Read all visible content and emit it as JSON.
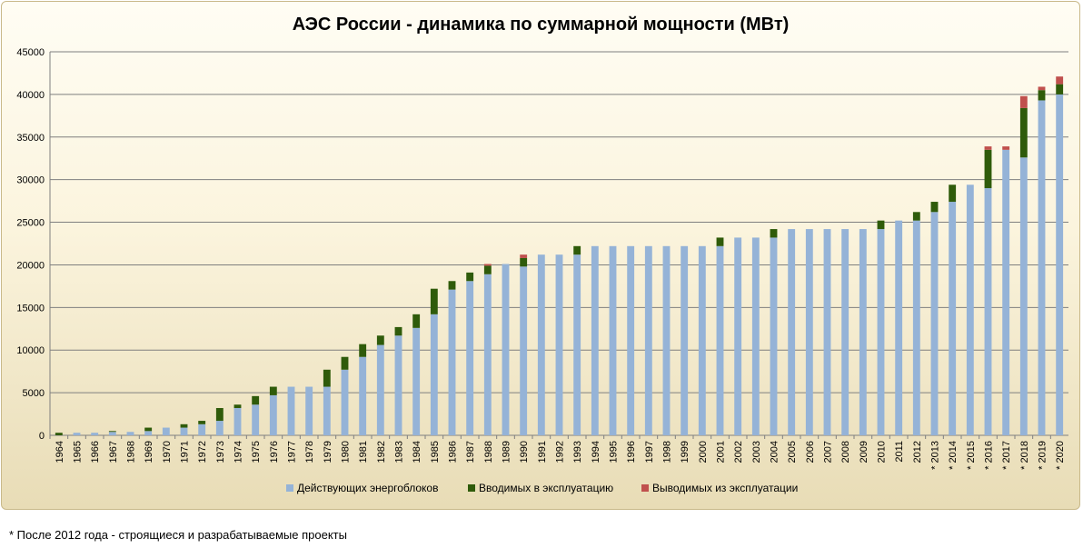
{
  "chart_data": {
    "type": "bar",
    "stacked": true,
    "title": "АЭС России - динамика по суммарной мощности (МВт)",
    "xlabel": "",
    "ylabel": "",
    "ylim": [
      0,
      45000
    ],
    "yticks": [
      0,
      5000,
      10000,
      15000,
      20000,
      25000,
      30000,
      35000,
      40000,
      45000
    ],
    "grid": true,
    "legend_position": "bottom",
    "categories": [
      "1964",
      "1965",
      "1966",
      "1967",
      "1968",
      "1969",
      "1970",
      "1971",
      "1972",
      "1973",
      "1974",
      "1975",
      "1976",
      "1977",
      "1978",
      "1979",
      "1980",
      "1981",
      "1982",
      "1983",
      "1984",
      "1985",
      "1986",
      "1987",
      "1988",
      "1989",
      "1990",
      "1991",
      "1992",
      "1993",
      "1994",
      "1995",
      "1996",
      "1997",
      "1998",
      "1999",
      "2000",
      "2001",
      "2002",
      "2003",
      "2004",
      "2005",
      "2006",
      "2007",
      "2008",
      "2009",
      "2010",
      "2011",
      "2012",
      "* 2013",
      "* 2014",
      "* 2015",
      "* 2016",
      "* 2017",
      "* 2018",
      "* 2019",
      "* 2020"
    ],
    "series": [
      {
        "name": "Действующих энергоблоков",
        "color": "#95b3d7",
        "values": [
          0,
          300,
          300,
          400,
          400,
          500,
          900,
          900,
          1300,
          1700,
          3200,
          3600,
          4700,
          5700,
          5700,
          5700,
          7700,
          9200,
          10600,
          11700,
          12600,
          14200,
          17100,
          18100,
          18900,
          20100,
          19800,
          21200,
          21200,
          21200,
          22200,
          22200,
          22200,
          22200,
          22200,
          22200,
          22200,
          22200,
          23200,
          23200,
          23200,
          24200,
          24200,
          24200,
          24200,
          24200,
          24200,
          25200,
          25200,
          26200,
          27400,
          29400,
          29000,
          33500,
          32600,
          39300,
          40000
        ]
      },
      {
        "name": "Вводимых в эксплуатацию",
        "color": "#2f5b0a",
        "values": [
          300,
          0,
          0,
          100,
          0,
          400,
          0,
          400,
          400,
          1500,
          400,
          1000,
          1000,
          0,
          0,
          2000,
          1500,
          1500,
          1100,
          1000,
          1600,
          3000,
          1000,
          1000,
          1000,
          0,
          1000,
          0,
          0,
          1000,
          0,
          0,
          0,
          0,
          0,
          0,
          0,
          1000,
          0,
          0,
          1000,
          0,
          0,
          0,
          0,
          0,
          1000,
          0,
          1000,
          1200,
          2000,
          0,
          4500,
          0,
          5800,
          1200,
          1200
        ]
      },
      {
        "name": "Выводимых из эксплуатации",
        "color": "#c0504d",
        "values": [
          0,
          0,
          0,
          0,
          0,
          0,
          0,
          0,
          0,
          0,
          0,
          0,
          0,
          0,
          0,
          0,
          0,
          0,
          0,
          0,
          0,
          0,
          0,
          0,
          200,
          0,
          400,
          0,
          0,
          0,
          0,
          0,
          0,
          0,
          0,
          0,
          0,
          0,
          0,
          0,
          0,
          0,
          0,
          0,
          0,
          0,
          0,
          0,
          0,
          0,
          0,
          0,
          400,
          400,
          1400,
          400,
          900
        ]
      }
    ]
  },
  "footnote": "* После 2012 года - строящиеся и разрабатываемые проекты"
}
